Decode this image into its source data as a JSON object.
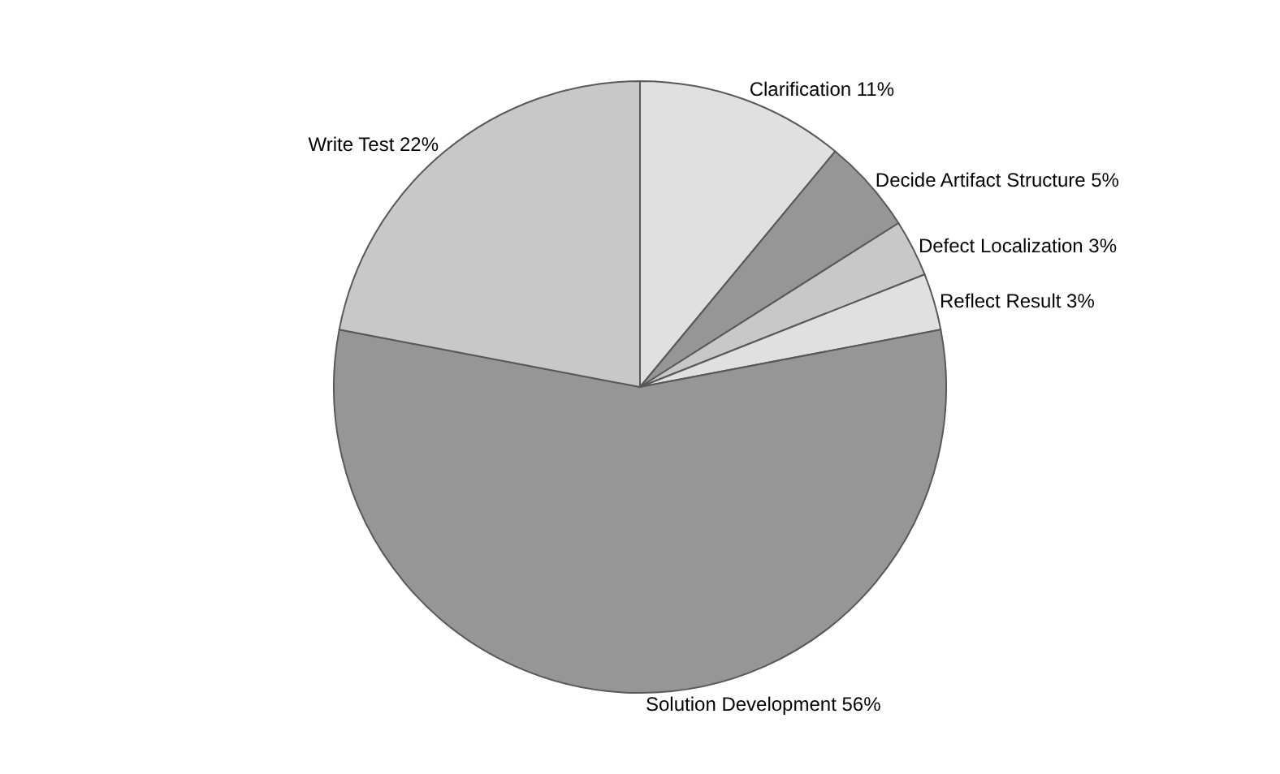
{
  "chart_data": {
    "type": "pie",
    "categories": [
      "Clarification",
      "Decide Artifact Structure",
      "Defect Localization",
      "Reflect Result",
      "Solution Development",
      "Write Test"
    ],
    "values": [
      11,
      5,
      3,
      3,
      56,
      22
    ],
    "value_labels": [
      "11%",
      "5%",
      "3%",
      "3%",
      "56%",
      "22%"
    ],
    "colors": [
      "#e0e0e0",
      "#969696",
      "#c8c8c8",
      "#e0e0e0",
      "#969696",
      "#c8c8c8"
    ],
    "legend": false
  }
}
